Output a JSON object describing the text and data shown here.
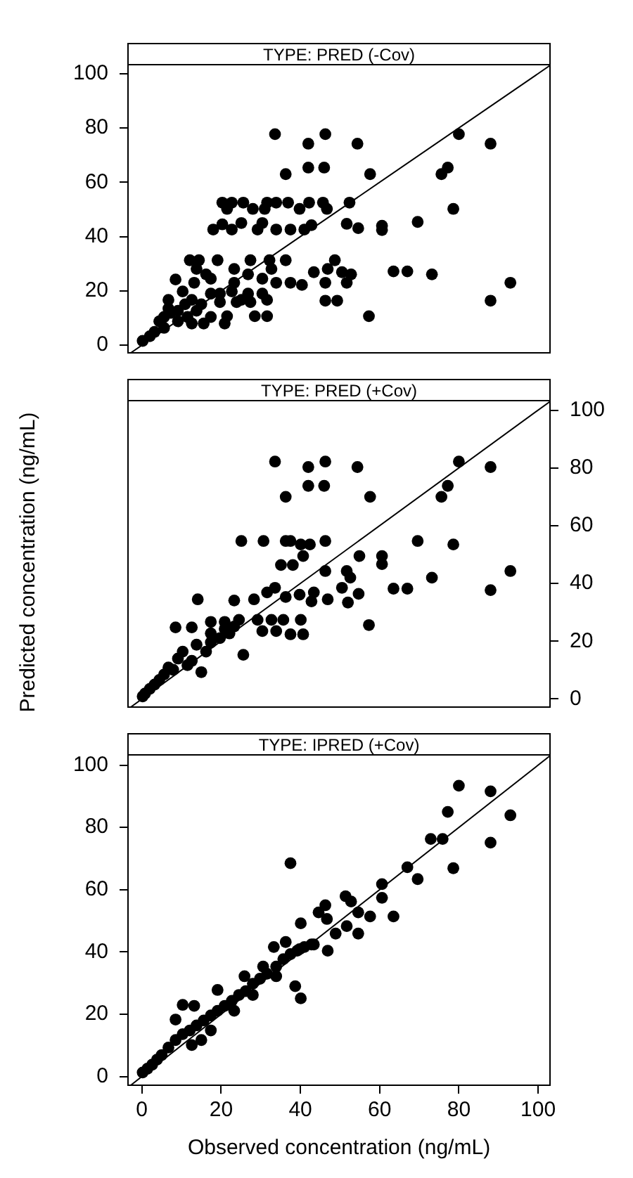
{
  "chart_data": [
    {
      "type": "scatter",
      "title": "TYPE: PRED (-Cov)",
      "xlim": [
        -3.5,
        103
      ],
      "ylim": [
        -2.8,
        103.3
      ],
      "xticks": [
        0,
        20,
        40,
        60,
        80,
        100
      ],
      "yticks": [
        0,
        20,
        40,
        60,
        80,
        100
      ],
      "grid": false,
      "legend": false,
      "marker": "circle",
      "tick_labels": "y",
      "series": [
        {
          "type": "scatter",
          "color": "#000000",
          "x": [
            33.6,
            42,
            46.3,
            54.4,
            36.3,
            42,
            46,
            57.6,
            80,
            88,
            75.6,
            77.2,
            78.6,
            52.4,
            69.6,
            60.6,
            60.6,
            51.7,
            54.6,
            63.5,
            67,
            73.2,
            88,
            93,
            57.3,
            46.3,
            49.3,
            28.5,
            31.6,
            20.3,
            22.7,
            25.6,
            31.6,
            33.9,
            36.9,
            42.2,
            45.7,
            21.5,
            28,
            31,
            39.8,
            46.7,
            18,
            20.3,
            22.7,
            25.1,
            29.2,
            30.4,
            33.9,
            37.5,
            41,
            42.8,
            12.1,
            14.4,
            19.1,
            27.4,
            32.2,
            36.3,
            13.8,
            32.7,
            23.3,
            26.8,
            30.4,
            33.9,
            37.5,
            40.4,
            43.4,
            46.9,
            48.7,
            50.5,
            52.8,
            51.7,
            46.3,
            17.4,
            23.3,
            16.2,
            8.5,
            13.2,
            10.3,
            6.7,
            12.6,
            17.4,
            19.7,
            22.7,
            25.1,
            26.8,
            30.4,
            31.6,
            9.1,
            13.8,
            17.4,
            21.5,
            9.1,
            12.6,
            15.6,
            20.9,
            4.4,
            5.6,
            3.2,
            2,
            0.2,
            5.6,
            7.3,
            11.5,
            10.9,
            6.7,
            19.7,
            15,
            23.9,
            27.4
          ],
          "values": [
            77.7,
            74.2,
            77.7,
            74.2,
            63,
            65.4,
            65.4,
            63,
            77.7,
            74.2,
            63,
            65.4,
            50.2,
            52.5,
            45.4,
            42.4,
            44,
            44.7,
            43.1,
            27.2,
            27.2,
            26.1,
            16.4,
            23,
            10.7,
            16.4,
            16.4,
            10.7,
            10.7,
            52.5,
            52.5,
            52.5,
            52.5,
            52.5,
            52.5,
            52.5,
            52.5,
            50.2,
            50.2,
            50.2,
            50.2,
            50.2,
            42.6,
            44.5,
            42.6,
            45,
            42.6,
            45,
            42.6,
            42.6,
            42.6,
            44.2,
            31.3,
            31.3,
            31.3,
            31.3,
            31.3,
            31.3,
            28.1,
            28.1,
            28.1,
            26.1,
            24.5,
            23,
            23,
            22.2,
            26.9,
            28.1,
            31.3,
            26.9,
            26.1,
            23,
            23,
            24.5,
            23,
            26.1,
            24.2,
            23,
            19.8,
            16.7,
            16.7,
            19,
            19,
            19.8,
            16.7,
            19,
            19,
            16.7,
            12.7,
            12.7,
            10.4,
            10.7,
            8.8,
            8,
            8,
            8,
            8.8,
            6.4,
            4.9,
            3.3,
            1.6,
            10.4,
            11.9,
            10.4,
            15.1,
            13.5,
            15.9,
            15.1,
            15.9,
            15.9
          ]
        },
        {
          "type": "line",
          "color": "#000000",
          "marker": "none",
          "line_style": "solid",
          "x": [
            -2.8,
            103
          ],
          "values": [
            -2.8,
            103
          ]
        }
      ]
    },
    {
      "type": "scatter",
      "title": "TYPE: PRED (+Cov)",
      "ylabel": "Predicted concentration (ng/mL)",
      "xlim": [
        -3.5,
        103
      ],
      "y2lim": [
        -2.8,
        103.3
      ],
      "xticks": [
        0,
        20,
        40,
        60,
        80,
        100
      ],
      "y2ticks": [
        0,
        20,
        40,
        60,
        80,
        100
      ],
      "grid": false,
      "legend": false,
      "marker": "circle",
      "tick_labels": "y",
      "series": [
        {
          "type": "scatter",
          "axis": "y2",
          "color": "#000000",
          "x": [
            33.6,
            42,
            46.3,
            54.4,
            42,
            46,
            36.3,
            57.6,
            80,
            88,
            77.2,
            75.6,
            69.6,
            78.6,
            93,
            88,
            73.2,
            63.5,
            67,
            60.6,
            60.6,
            54.9,
            57.3,
            25.1,
            30.7,
            36.3,
            37.5,
            40.1,
            42.4,
            46.3,
            40.7,
            35.1,
            38.1,
            46.3,
            51.7,
            52.6,
            14.1,
            23.3,
            28.3,
            31.6,
            33.6,
            36.3,
            39.8,
            43.4,
            46.9,
            50.5,
            54.7,
            52,
            42.8,
            8.5,
            12.6,
            17.4,
            20.9,
            24.5,
            29.2,
            32.7,
            35.7,
            40.1,
            37.5,
            40.7,
            33.9,
            30.4,
            17.4,
            22.1,
            25.6,
            15,
            11.5,
            9.1,
            5.6,
            4.4,
            3.2,
            2,
            0.8,
            0.2,
            6.7,
            10.3,
            13.8,
            17.4,
            19.7,
            12.6,
            16.2,
            20.9,
            23.3,
            7.9
          ],
          "values": [
            82.2,
            80.3,
            82.2,
            80.3,
            73.8,
            73.8,
            70,
            70,
            82.2,
            80.3,
            73.8,
            70,
            54.7,
            53.5,
            44.3,
            37.7,
            42,
            38.2,
            38.2,
            49.5,
            46.7,
            49.5,
            25.6,
            54.7,
            54.7,
            54.7,
            54.7,
            53.5,
            53.5,
            54.7,
            49.5,
            46.4,
            46.4,
            44.3,
            44.3,
            42,
            34.5,
            34.1,
            34.5,
            36.9,
            38.5,
            35.3,
            36.1,
            36.9,
            34.5,
            38.5,
            36.4,
            33.4,
            33.8,
            24.8,
            24.8,
            26.7,
            26.7,
            27.4,
            27.4,
            27.4,
            27.4,
            27.4,
            22.4,
            22.4,
            23.5,
            23.5,
            22.7,
            22.7,
            15.3,
            9.3,
            11.7,
            14,
            8.5,
            6.6,
            5,
            3.5,
            1.9,
            0.9,
            10.9,
            16.4,
            18.8,
            19.6,
            21.1,
            13.2,
            16.4,
            24.3,
            25.1,
            10.1
          ]
        },
        {
          "type": "line",
          "axis": "y2",
          "color": "#000000",
          "marker": "none",
          "line_style": "solid",
          "x": [
            -2.8,
            103
          ],
          "values": [
            -2.8,
            103
          ]
        }
      ]
    },
    {
      "type": "scatter",
      "title": "TYPE: IPRED (+Cov)",
      "xlabel": "Observed concentration (ng/mL)",
      "xlim": [
        -3.5,
        103
      ],
      "ylim": [
        -2.8,
        103.3
      ],
      "xticks": [
        0,
        20,
        40,
        60,
        80,
        100
      ],
      "yticks": [
        0,
        20,
        40,
        60,
        80,
        100
      ],
      "grid": false,
      "legend": false,
      "marker": "circle",
      "series": [
        {
          "type": "scatter",
          "color": "#000000",
          "x": [
            80,
            88,
            93,
            77.2,
            88,
            78.6,
            72.9,
            75.9,
            67,
            69.6,
            60.6,
            60.6,
            63.5,
            57.6,
            51.4,
            52.8,
            54.6,
            54.6,
            51.7,
            48.9,
            46.3,
            44.6,
            46.7,
            37.5,
            40.1,
            46.9,
            43.4,
            39.8,
            36.3,
            33.3,
            40.1,
            38.7,
            0.2,
            1.4,
            2.6,
            3.8,
            5,
            6.7,
            8.5,
            10.3,
            12.1,
            13.8,
            15.6,
            17.4,
            19.1,
            20.9,
            22.7,
            24.5,
            26.2,
            28,
            29.8,
            31.6,
            33.9,
            35.7,
            37.5,
            39.2,
            41,
            42.8,
            8.5,
            10.3,
            13.2,
            19.1,
            25.9,
            30.6,
            15,
            17.4,
            12.6,
            23.3,
            28,
            33.9
          ],
          "values": [
            93.4,
            91.6,
            83.9,
            85,
            75.1,
            66.9,
            76.3,
            76.3,
            67.2,
            63.4,
            61.8,
            57.4,
            51.4,
            51.4,
            57.9,
            56.2,
            52.7,
            45.9,
            48.3,
            45.9,
            55,
            52.7,
            50.6,
            68.5,
            49.2,
            40.4,
            42.4,
            40.9,
            43.2,
            41.6,
            25.1,
            29,
            1.3,
            2.5,
            3.8,
            5.4,
            6.9,
            9.3,
            11.7,
            13.6,
            14.8,
            16.4,
            18,
            19.6,
            21.1,
            22.7,
            24.3,
            26.2,
            27.4,
            29.8,
            31.4,
            33,
            35.3,
            37.7,
            39.3,
            40.4,
            41.6,
            42.4,
            18.3,
            23,
            22.7,
            27.8,
            32.2,
            35.3,
            11.7,
            14.8,
            10.1,
            21.1,
            26.2,
            32.2
          ]
        },
        {
          "type": "line",
          "color": "#000000",
          "marker": "none",
          "line_style": "solid",
          "x": [
            -2.8,
            103
          ],
          "values": [
            -2.8,
            103
          ]
        }
      ]
    }
  ]
}
